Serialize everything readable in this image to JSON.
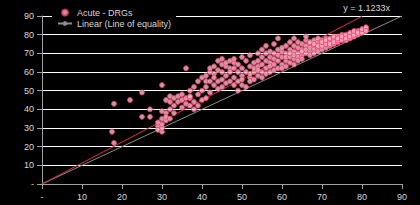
{
  "chart_data": {
    "type": "scatter",
    "annotation": "y = 1.1233x",
    "xlim": [
      0,
      90
    ],
    "ylim": [
      0,
      90
    ],
    "xticks": [
      {
        "value": 0,
        "label": "-"
      },
      10,
      20,
      30,
      40,
      50,
      60,
      70,
      80,
      90
    ],
    "yticks": [
      {
        "value": 0,
        "label": "-"
      },
      10,
      20,
      30,
      40,
      50,
      60,
      70,
      80,
      90
    ],
    "grid": true,
    "legend": "upper left",
    "series": [
      {
        "name": "Acute - DRGs",
        "type": "scatter",
        "marker": "circle",
        "color": "#e8406a",
        "x": [
          17.5,
          18,
          18,
          22,
          25,
          25,
          27,
          27,
          29,
          29,
          29,
          30,
          30,
          30,
          30,
          30,
          30,
          31,
          31,
          31,
          31,
          32,
          32,
          32,
          32,
          33,
          33,
          33,
          34,
          34,
          35,
          35,
          35,
          36,
          36,
          36,
          37,
          37,
          37,
          37,
          38,
          38,
          38,
          39,
          39,
          39,
          40,
          40,
          40,
          41,
          41,
          41,
          41,
          42,
          42,
          42,
          42,
          43,
          43,
          43,
          43,
          44,
          44,
          44,
          44,
          45,
          45,
          45,
          45,
          45,
          46,
          46,
          46,
          46,
          47,
          47,
          47,
          47,
          48,
          48,
          48,
          48,
          48,
          49,
          49,
          49,
          49,
          50,
          50,
          50,
          50,
          50,
          51,
          51,
          51,
          52,
          52,
          52,
          52,
          52,
          53,
          53,
          53,
          53,
          54,
          54,
          54,
          54,
          54,
          55,
          55,
          55,
          55,
          55,
          56,
          56,
          56,
          56,
          56,
          57,
          57,
          57,
          57,
          57,
          58,
          58,
          58,
          58,
          58,
          59,
          59,
          59,
          59,
          59,
          60,
          60,
          60,
          60,
          60,
          61,
          61,
          61,
          61,
          61,
          62,
          62,
          62,
          62,
          62,
          63,
          63,
          63,
          63,
          63,
          63,
          64,
          64,
          64,
          64,
          64,
          65,
          65,
          65,
          65,
          65,
          66,
          66,
          66,
          66,
          66,
          67,
          67,
          67,
          67,
          67,
          68,
          68,
          68,
          68,
          68,
          69,
          69,
          69,
          69,
          69,
          70,
          70,
          70,
          70,
          70,
          71,
          71,
          71,
          71,
          71,
          72,
          72,
          72,
          72,
          72,
          73,
          73,
          73,
          73,
          73,
          74,
          74,
          74,
          74,
          75,
          75,
          75,
          75,
          76,
          76,
          76,
          76,
          77,
          77,
          77,
          77,
          78,
          78,
          78,
          78,
          79,
          79,
          79,
          80,
          80,
          80,
          81,
          81,
          81
        ],
        "values": [
          28,
          22,
          43,
          45,
          49,
          36,
          36,
          40,
          31,
          33,
          29,
          28,
          30,
          32,
          35,
          39,
          53,
          34,
          38,
          45,
          36,
          44,
          40,
          47,
          35,
          42,
          46,
          38,
          47,
          44,
          48,
          45,
          41,
          62,
          46,
          43,
          50,
          46,
          42,
          47,
          52,
          40,
          44,
          48,
          55,
          42,
          57,
          50,
          45,
          55,
          58,
          52,
          46,
          60,
          55,
          49,
          62,
          63,
          59,
          53,
          57,
          66,
          61,
          55,
          51,
          67,
          60,
          56,
          52,
          64,
          58,
          63,
          54,
          65,
          62,
          60,
          66,
          55,
          57,
          53,
          65,
          62,
          67,
          60,
          55,
          50,
          64,
          58,
          53,
          62,
          56,
          68,
          66,
          60,
          52,
          63,
          69,
          57,
          59,
          55,
          65,
          60,
          62,
          56,
          70,
          66,
          58,
          63,
          61,
          72,
          68,
          64,
          60,
          57,
          62,
          66,
          70,
          74,
          59,
          65,
          68,
          63,
          60,
          71,
          70,
          67,
          64,
          75,
          61,
          66,
          62,
          72,
          69,
          78,
          68,
          64,
          71,
          73,
          62,
          66,
          70,
          74,
          63,
          68,
          72,
          68,
          65,
          76,
          70,
          67,
          74,
          71,
          69,
          78,
          64,
          70,
          73,
          68,
          76,
          66,
          72,
          69,
          75,
          71,
          67,
          74,
          70,
          77,
          72,
          79,
          71,
          75,
          73,
          69,
          76,
          74,
          72,
          77,
          70,
          75,
          76,
          73,
          71,
          78,
          74,
          75,
          72,
          77,
          74,
          76,
          73,
          76,
          78,
          75,
          77,
          77,
          74,
          76,
          78,
          75,
          78,
          75,
          77,
          79,
          76,
          76,
          79,
          77,
          78,
          78,
          80,
          77,
          79,
          79,
          77,
          80,
          78,
          80,
          78,
          81,
          79,
          81,
          79,
          80,
          82,
          80,
          82,
          81,
          82,
          81,
          83,
          83,
          84,
          82
        ]
      },
      {
        "name": "Linear (Line of equality)",
        "type": "line",
        "color": "#8c8c8c",
        "line_style": "solid",
        "x": [
          0,
          90
        ],
        "values": [
          0,
          90
        ]
      },
      {
        "type": "line",
        "color": "#e0303c",
        "line_style": "solid",
        "x": [
          0,
          80
        ],
        "values": [
          0,
          89.86
        ]
      }
    ]
  }
}
